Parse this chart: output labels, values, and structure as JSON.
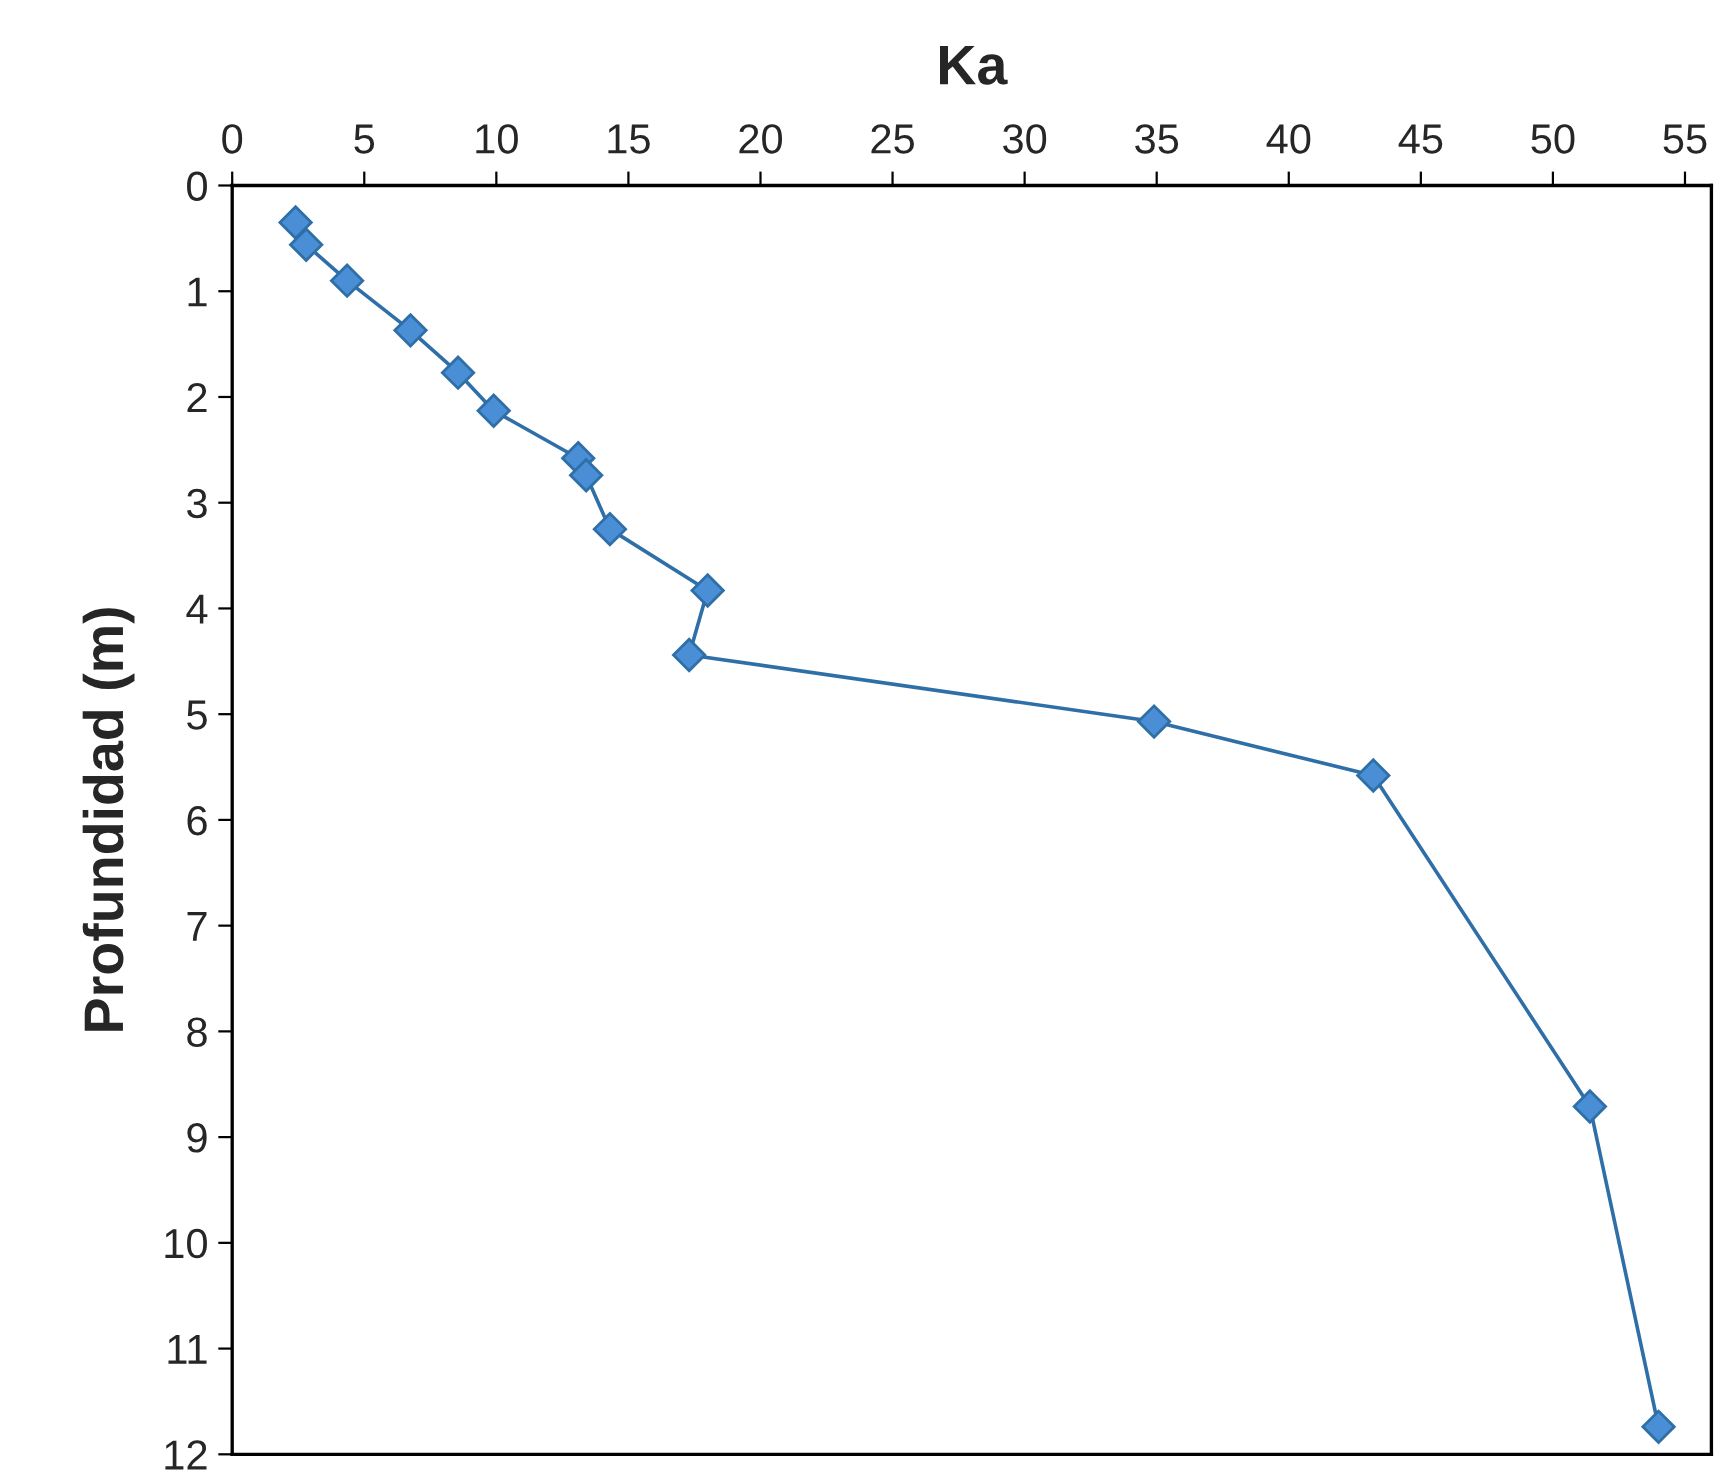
{
  "chart_data": {
    "type": "line",
    "xlabel": "Ka",
    "ylabel": "Profundidad (m)",
    "series": [
      {
        "color": "#4a8fd6",
        "x": [
          2.4,
          2.8,
          4.35,
          6.75,
          8.55,
          9.9,
          13.1,
          13.4,
          14.3,
          18.0,
          17.3,
          34.9,
          43.2,
          51.4,
          54.0
        ],
        "values": [
          0.35,
          0.56,
          0.9,
          1.37,
          1.77,
          2.13,
          2.58,
          2.74,
          3.25,
          3.83,
          4.44,
          5.07,
          5.58,
          8.71,
          11.74
        ]
      }
    ],
    "xlim": [
      0,
      56
    ],
    "xticks": [
      0,
      5,
      10,
      15,
      20,
      25,
      30,
      35,
      40,
      45,
      50,
      55
    ],
    "ylim": [
      12,
      0
    ],
    "yticks": [
      0,
      1,
      2,
      3,
      4,
      5,
      6,
      7,
      8,
      9,
      10,
      11,
      12
    ],
    "marker": "diamond",
    "line_style": "solid",
    "grid": false,
    "legend": false
  }
}
